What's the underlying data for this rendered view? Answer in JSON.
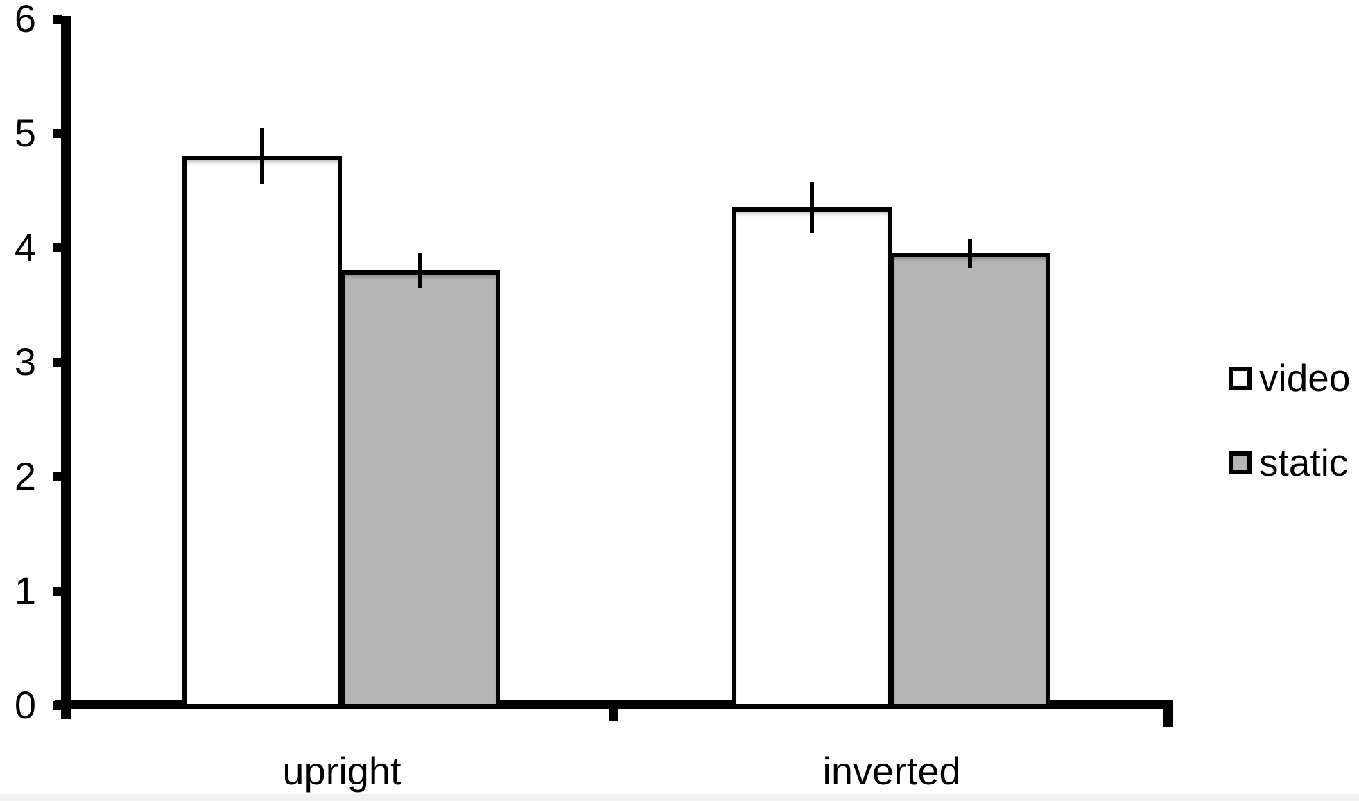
{
  "chart_data": {
    "type": "bar",
    "title": "",
    "xlabel": "",
    "ylabel": "",
    "categories": [
      "upright",
      "inverted"
    ],
    "series": [
      {
        "name": "video",
        "fill": "#ffffff",
        "values": [
          4.8,
          4.35
        ],
        "errors": [
          0.25,
          0.22
        ]
      },
      {
        "name": "static",
        "fill": "#b5b5b6",
        "values": [
          3.8,
          3.95
        ],
        "errors": [
          0.15,
          0.13
        ]
      }
    ],
    "ylim": [
      0,
      6
    ],
    "yticks": [
      "0",
      "1",
      "2",
      "3",
      "4",
      "5",
      "6"
    ],
    "grid": false,
    "legend_position": "right",
    "legend_entries": [
      "video",
      "static"
    ],
    "colors": {
      "axis": "#000000",
      "bar_border": "#000000",
      "text": "#000000",
      "video_fill": "#ffffff",
      "static_fill": "#b5b5b6",
      "background": "#ffffff"
    }
  }
}
